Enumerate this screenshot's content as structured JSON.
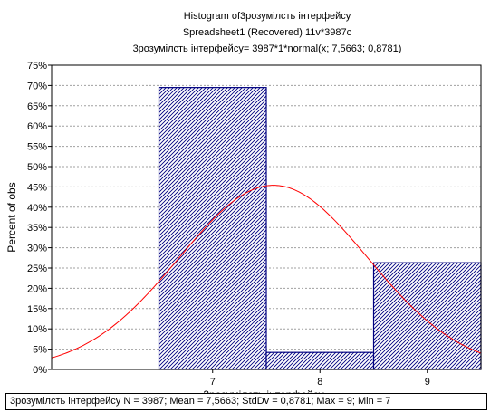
{
  "chart_data": {
    "type": "bar",
    "title": "Histogram of3розумілсть інтерфейсу",
    "subtitle": "Spreadsheet1  (Recovered) 11v*3987c",
    "formula": "3розумілсть інтерфейсу= 3987*1*normal(x; 7,5663; 0,8781)",
    "xlabel": "3розумілсть інтерфейсу",
    "ylabel": "Percent of obs",
    "categories": [
      "7",
      "8",
      "9"
    ],
    "values": [
      69.5,
      4.2,
      26.3
    ],
    "bin_edges": [
      6.5,
      7.5,
      8.5,
      9.5
    ],
    "xlim": [
      5.5,
      9.5
    ],
    "ylim": [
      0,
      75
    ],
    "yticks": [
      "0%",
      "5%",
      "10%",
      "15%",
      "20%",
      "25%",
      "30%",
      "35%",
      "40%",
      "45%",
      "50%",
      "55%",
      "60%",
      "65%",
      "70%",
      "75%"
    ],
    "normal_fit": {
      "mean": 7.5663,
      "sd": 0.8781,
      "peak_percent": 45.4
    },
    "grid": true,
    "colors": {
      "bar_stroke": "#000080",
      "hatch": "#000080",
      "fit_line": "#ff0000",
      "grid": "#a0a0a0"
    },
    "stats": "3розумілсть інтерфейсу   N = 3987; Mean = 7,5663; StdDv = 0,8781; Max = 9; Min = 7"
  }
}
